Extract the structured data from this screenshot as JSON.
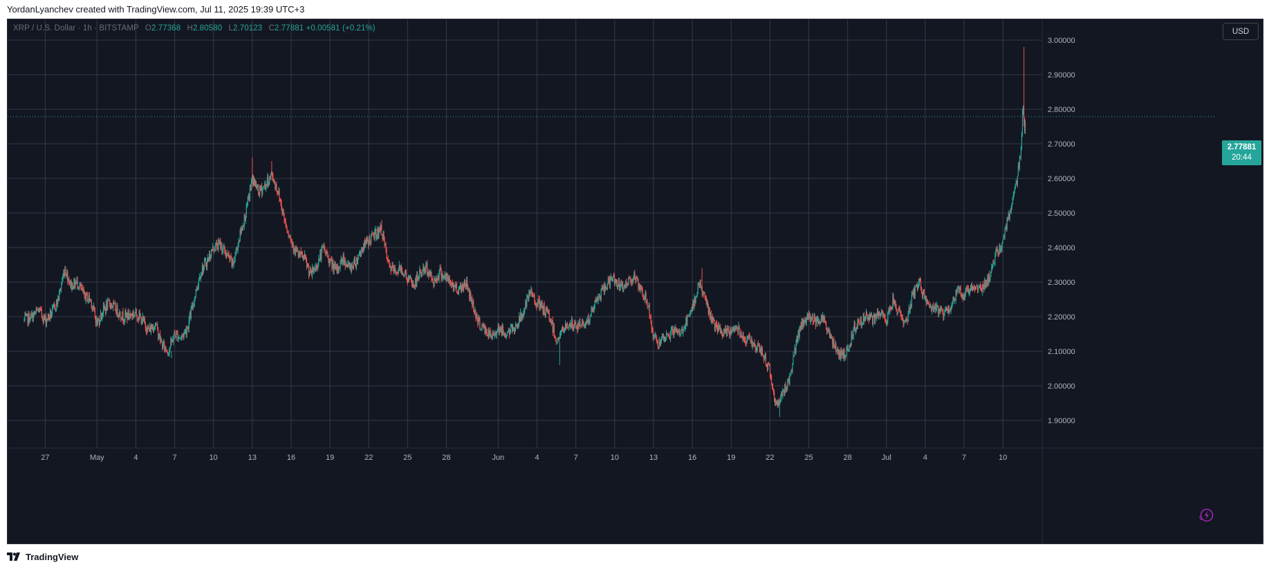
{
  "header": {
    "caption": "YordanLyanchev created with TradingView.com, Jul 11, 2025 19:39 UTC+3"
  },
  "legend": {
    "symbol": "XRP / U.S. Dollar · 1h · BITSTAMP",
    "open_label": "O",
    "open": "2.77368",
    "high_label": "H",
    "high": "2.80580",
    "low_label": "L",
    "low": "2.70123",
    "close_label": "C",
    "close": "2.77881",
    "change": "+0.00581 (+0.21%)"
  },
  "currency_button": {
    "label": "USD"
  },
  "last_price": {
    "price": "2.77881",
    "countdown": "20:44"
  },
  "footer": {
    "brand": "TradingView"
  },
  "icons": {
    "footer_logo": "tradingview-logo-icon",
    "bolt": "lightning-bolt-icon"
  },
  "colors": {
    "background": "#131722",
    "grid": "#363a45",
    "up": "#26a69a",
    "down": "#ef5350",
    "axis_text": "#b2b5be",
    "bolt": "#9c27b0"
  },
  "chart_data": {
    "type": "candlestick",
    "symbol": "XRP / U.S. Dollar",
    "interval": "1h",
    "exchange": "BITSTAMP",
    "ylim": [
      1.82,
      3.06
    ],
    "y_ticks": [
      "3.00000",
      "2.90000",
      "2.80000",
      "2.70000",
      "2.60000",
      "2.50000",
      "2.40000",
      "2.30000",
      "2.20000",
      "2.10000",
      "2.00000",
      "1.90000"
    ],
    "x_ticks": [
      {
        "label": "27",
        "date": "2025-04-27"
      },
      {
        "label": "May",
        "date": "2025-05-01"
      },
      {
        "label": "4",
        "date": "2025-05-04"
      },
      {
        "label": "7",
        "date": "2025-05-07"
      },
      {
        "label": "10",
        "date": "2025-05-10"
      },
      {
        "label": "13",
        "date": "2025-05-13"
      },
      {
        "label": "16",
        "date": "2025-05-16"
      },
      {
        "label": "19",
        "date": "2025-05-19"
      },
      {
        "label": "22",
        "date": "2025-05-22"
      },
      {
        "label": "25",
        "date": "2025-05-25"
      },
      {
        "label": "28",
        "date": "2025-05-28"
      },
      {
        "label": "Jun",
        "date": "2025-06-01"
      },
      {
        "label": "4",
        "date": "2025-06-04"
      },
      {
        "label": "7",
        "date": "2025-06-07"
      },
      {
        "label": "10",
        "date": "2025-06-10"
      },
      {
        "label": "13",
        "date": "2025-06-13"
      },
      {
        "label": "16",
        "date": "2025-06-16"
      },
      {
        "label": "19",
        "date": "2025-06-19"
      },
      {
        "label": "22",
        "date": "2025-06-22"
      },
      {
        "label": "25",
        "date": "2025-06-25"
      },
      {
        "label": "28",
        "date": "2025-06-28"
      },
      {
        "label": "Jul",
        "date": "2025-07-01"
      },
      {
        "label": "4",
        "date": "2025-07-04"
      },
      {
        "label": "7",
        "date": "2025-07-07"
      },
      {
        "label": "10",
        "date": "2025-07-10"
      }
    ],
    "x_range": [
      "2025-04-25T09:00",
      "2025-07-11T18:00"
    ],
    "last_price_line": 2.77881,
    "grid": true,
    "price_path": [
      [
        "2025-04-25T09:00",
        2.19
      ],
      [
        "2025-04-26T00:00",
        2.2
      ],
      [
        "2025-04-26T12:00",
        2.22
      ],
      [
        "2025-04-27T00:00",
        2.19
      ],
      [
        "2025-04-27T12:00",
        2.21
      ],
      [
        "2025-04-28T00:00",
        2.25
      ],
      [
        "2025-04-28T12:00",
        2.34
      ],
      [
        "2025-04-29T00:00",
        2.29
      ],
      [
        "2025-04-29T12:00",
        2.3
      ],
      [
        "2025-04-30T00:00",
        2.26
      ],
      [
        "2025-04-30T12:00",
        2.25
      ],
      [
        "2025-05-01T00:00",
        2.18
      ],
      [
        "2025-05-01T12:00",
        2.22
      ],
      [
        "2025-05-02T00:00",
        2.24
      ],
      [
        "2025-05-02T12:00",
        2.22
      ],
      [
        "2025-05-03T00:00",
        2.2
      ],
      [
        "2025-05-04T00:00",
        2.21
      ],
      [
        "2025-05-04T12:00",
        2.19
      ],
      [
        "2025-05-05T00:00",
        2.16
      ],
      [
        "2025-05-05T12:00",
        2.18
      ],
      [
        "2025-05-06T00:00",
        2.12
      ],
      [
        "2025-05-06T12:00",
        2.1
      ],
      [
        "2025-05-07T00:00",
        2.15
      ],
      [
        "2025-05-07T12:00",
        2.14
      ],
      [
        "2025-05-08T00:00",
        2.17
      ],
      [
        "2025-05-08T12:00",
        2.25
      ],
      [
        "2025-05-09T00:00",
        2.33
      ],
      [
        "2025-05-09T12:00",
        2.36
      ],
      [
        "2025-05-10T00:00",
        2.4
      ],
      [
        "2025-05-10T12:00",
        2.41
      ],
      [
        "2025-05-11T00:00",
        2.38
      ],
      [
        "2025-05-11T12:00",
        2.35
      ],
      [
        "2025-05-12T00:00",
        2.43
      ],
      [
        "2025-05-12T12:00",
        2.5
      ],
      [
        "2025-05-13T00:00",
        2.6
      ],
      [
        "2025-05-13T12:00",
        2.56
      ],
      [
        "2025-05-14T00:00",
        2.58
      ],
      [
        "2025-05-14T12:00",
        2.61
      ],
      [
        "2025-05-15T00:00",
        2.56
      ],
      [
        "2025-05-15T12:00",
        2.48
      ],
      [
        "2025-05-16T00:00",
        2.42
      ],
      [
        "2025-05-16T12:00",
        2.38
      ],
      [
        "2025-05-17T00:00",
        2.37
      ],
      [
        "2025-05-17T12:00",
        2.32
      ],
      [
        "2025-05-18T00:00",
        2.35
      ],
      [
        "2025-05-18T12:00",
        2.4
      ],
      [
        "2025-05-19T00:00",
        2.36
      ],
      [
        "2025-05-19T12:00",
        2.33
      ],
      [
        "2025-05-20T00:00",
        2.37
      ],
      [
        "2025-05-20T12:00",
        2.34
      ],
      [
        "2025-05-21T00:00",
        2.36
      ],
      [
        "2025-05-21T12:00",
        2.4
      ],
      [
        "2025-05-22T00:00",
        2.42
      ],
      [
        "2025-05-22T12:00",
        2.44
      ],
      [
        "2025-05-23T00:00",
        2.45
      ],
      [
        "2025-05-23T12:00",
        2.35
      ],
      [
        "2025-05-24T00:00",
        2.33
      ],
      [
        "2025-05-24T12:00",
        2.34
      ],
      [
        "2025-05-25T00:00",
        2.31
      ],
      [
        "2025-05-25T12:00",
        2.29
      ],
      [
        "2025-05-26T00:00",
        2.33
      ],
      [
        "2025-05-26T12:00",
        2.34
      ],
      [
        "2025-05-27T00:00",
        2.3
      ],
      [
        "2025-05-27T12:00",
        2.33
      ],
      [
        "2025-05-28T00:00",
        2.31
      ],
      [
        "2025-05-28T12:00",
        2.29
      ],
      [
        "2025-05-29T00:00",
        2.28
      ],
      [
        "2025-05-29T12:00",
        2.3
      ],
      [
        "2025-05-30T00:00",
        2.24
      ],
      [
        "2025-05-30T12:00",
        2.18
      ],
      [
        "2025-05-31T00:00",
        2.16
      ],
      [
        "2025-05-31T12:00",
        2.14
      ],
      [
        "2025-06-01T00:00",
        2.17
      ],
      [
        "2025-06-01T12:00",
        2.15
      ],
      [
        "2025-06-02T00:00",
        2.16
      ],
      [
        "2025-06-02T12:00",
        2.18
      ],
      [
        "2025-06-03T00:00",
        2.22
      ],
      [
        "2025-06-03T12:00",
        2.27
      ],
      [
        "2025-06-04T00:00",
        2.24
      ],
      [
        "2025-06-04T12:00",
        2.22
      ],
      [
        "2025-06-05T00:00",
        2.2
      ],
      [
        "2025-06-05T12:00",
        2.13
      ],
      [
        "2025-06-06T00:00",
        2.16
      ],
      [
        "2025-06-06T12:00",
        2.18
      ],
      [
        "2025-06-07T00:00",
        2.17
      ],
      [
        "2025-06-07T12:00",
        2.18
      ],
      [
        "2025-06-08T00:00",
        2.19
      ],
      [
        "2025-06-08T12:00",
        2.24
      ],
      [
        "2025-06-09T00:00",
        2.27
      ],
      [
        "2025-06-09T12:00",
        2.3
      ],
      [
        "2025-06-10T00:00",
        2.31
      ],
      [
        "2025-06-10T12:00",
        2.28
      ],
      [
        "2025-06-11T00:00",
        2.3
      ],
      [
        "2025-06-11T12:00",
        2.32
      ],
      [
        "2025-06-12T00:00",
        2.27
      ],
      [
        "2025-06-12T12:00",
        2.25
      ],
      [
        "2025-06-13T00:00",
        2.14
      ],
      [
        "2025-06-13T12:00",
        2.12
      ],
      [
        "2025-06-14T00:00",
        2.14
      ],
      [
        "2025-06-14T12:00",
        2.16
      ],
      [
        "2025-06-15T00:00",
        2.15
      ],
      [
        "2025-06-15T12:00",
        2.18
      ],
      [
        "2025-06-16T00:00",
        2.22
      ],
      [
        "2025-06-16T12:00",
        2.3
      ],
      [
        "2025-06-17T00:00",
        2.25
      ],
      [
        "2025-06-17T12:00",
        2.19
      ],
      [
        "2025-06-18T00:00",
        2.16
      ],
      [
        "2025-06-18T12:00",
        2.15
      ],
      [
        "2025-06-19T00:00",
        2.16
      ],
      [
        "2025-06-19T12:00",
        2.17
      ],
      [
        "2025-06-20T00:00",
        2.14
      ],
      [
        "2025-06-20T12:00",
        2.13
      ],
      [
        "2025-06-21T00:00",
        2.11
      ],
      [
        "2025-06-21T12:00",
        2.09
      ],
      [
        "2025-06-22T00:00",
        2.04
      ],
      [
        "2025-06-22T12:00",
        1.94
      ],
      [
        "2025-06-23T00:00",
        1.98
      ],
      [
        "2025-06-23T12:00",
        2.02
      ],
      [
        "2025-06-24T00:00",
        2.12
      ],
      [
        "2025-06-24T12:00",
        2.18
      ],
      [
        "2025-06-25T00:00",
        2.2
      ],
      [
        "2025-06-25T12:00",
        2.19
      ],
      [
        "2025-06-26T00:00",
        2.2
      ],
      [
        "2025-06-26T12:00",
        2.16
      ],
      [
        "2025-06-27T00:00",
        2.11
      ],
      [
        "2025-06-27T12:00",
        2.09
      ],
      [
        "2025-06-28T00:00",
        2.1
      ],
      [
        "2025-06-28T12:00",
        2.17
      ],
      [
        "2025-06-29T00:00",
        2.19
      ],
      [
        "2025-06-29T12:00",
        2.2
      ],
      [
        "2025-06-30T00:00",
        2.19
      ],
      [
        "2025-06-30T12:00",
        2.21
      ],
      [
        "2025-07-01T00:00",
        2.19
      ],
      [
        "2025-07-01T12:00",
        2.25
      ],
      [
        "2025-07-02T00:00",
        2.21
      ],
      [
        "2025-07-02T12:00",
        2.18
      ],
      [
        "2025-07-03T00:00",
        2.26
      ],
      [
        "2025-07-03T12:00",
        2.3
      ],
      [
        "2025-07-04T00:00",
        2.25
      ],
      [
        "2025-07-04T12:00",
        2.22
      ],
      [
        "2025-07-05T00:00",
        2.22
      ],
      [
        "2025-07-05T12:00",
        2.21
      ],
      [
        "2025-07-06T00:00",
        2.23
      ],
      [
        "2025-07-06T12:00",
        2.28
      ],
      [
        "2025-07-07T00:00",
        2.26
      ],
      [
        "2025-07-07T12:00",
        2.29
      ],
      [
        "2025-07-08T00:00",
        2.28
      ],
      [
        "2025-07-08T12:00",
        2.29
      ],
      [
        "2025-07-09T00:00",
        2.32
      ],
      [
        "2025-07-09T12:00",
        2.38
      ],
      [
        "2025-07-10T00:00",
        2.42
      ],
      [
        "2025-07-10T12:00",
        2.5
      ],
      [
        "2025-07-11T00:00",
        2.58
      ],
      [
        "2025-07-11T06:00",
        2.64
      ],
      [
        "2025-07-11T10:00",
        2.7
      ],
      [
        "2025-07-11T13:00",
        2.82
      ],
      [
        "2025-07-11T16:00",
        2.75
      ],
      [
        "2025-07-11T18:00",
        2.77881
      ]
    ],
    "spikes": [
      {
        "t": "2025-05-13T00:00",
        "high": 2.66
      },
      {
        "t": "2025-05-14T12:00",
        "high": 2.65
      },
      {
        "t": "2025-05-23T00:00",
        "high": 2.48
      },
      {
        "t": "2025-06-16T18:00",
        "high": 2.34
      },
      {
        "t": "2025-06-22T18:00",
        "low": 1.91
      },
      {
        "t": "2025-05-06T18:00",
        "low": 2.08
      },
      {
        "t": "2025-06-05T18:00",
        "low": 2.06
      },
      {
        "t": "2025-06-27T18:00",
        "low": 2.07
      },
      {
        "t": "2025-07-11T15:00",
        "high": 2.98
      }
    ]
  }
}
